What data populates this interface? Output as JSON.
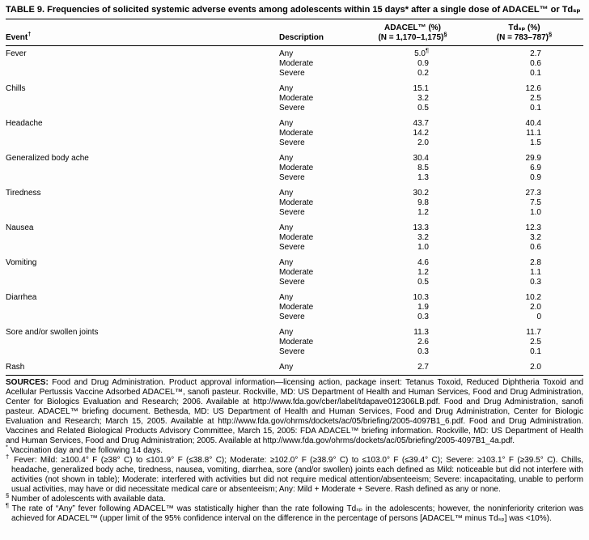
{
  "title": "TABLE 9. Frequencies of solicited systemic adverse events among adolescents within 15 days* after a single dose of ADACEL™ or Tdₛₚ",
  "table": {
    "headers": {
      "event": "Event†",
      "description": "Description",
      "adacel_line1": "ADACEL™ (%)",
      "adacel_line2": "(N = 1,170–1,175)§",
      "tdsp_line1": "Tdₛₚ (%)",
      "tdsp_line2": "(N = 783–787)§"
    },
    "rows": [
      {
        "event": "Fever",
        "entries": [
          [
            "Any",
            "5.0¶",
            "2.7"
          ],
          [
            "Moderate",
            "0.9",
            "0.6"
          ],
          [
            "Severe",
            "0.2",
            "0.1"
          ]
        ]
      },
      {
        "event": "Chills",
        "entries": [
          [
            "Any",
            "15.1",
            "12.6"
          ],
          [
            "Moderate",
            "3.2",
            "2.5"
          ],
          [
            "Severe",
            "0.5",
            "0.1"
          ]
        ]
      },
      {
        "event": "Headache",
        "entries": [
          [
            "Any",
            "43.7",
            "40.4"
          ],
          [
            "Moderate",
            "14.2",
            "11.1"
          ],
          [
            "Severe",
            "2.0",
            "1.5"
          ]
        ]
      },
      {
        "event": "Generalized body ache",
        "entries": [
          [
            "Any",
            "30.4",
            "29.9"
          ],
          [
            "Moderate",
            "8.5",
            "6.9"
          ],
          [
            "Severe",
            "1.3",
            "0.9"
          ]
        ]
      },
      {
        "event": "Tiredness",
        "entries": [
          [
            "Any",
            "30.2",
            "27.3"
          ],
          [
            "Moderate",
            "9.8",
            "7.5"
          ],
          [
            "Severe",
            "1.2",
            "1.0"
          ]
        ]
      },
      {
        "event": "Nausea",
        "entries": [
          [
            "Any",
            "13.3",
            "12.3"
          ],
          [
            "Moderate",
            "3.2",
            "3.2"
          ],
          [
            "Severe",
            "1.0",
            "0.6"
          ]
        ]
      },
      {
        "event": "Vomiting",
        "entries": [
          [
            "Any",
            "4.6",
            "2.8"
          ],
          [
            "Moderate",
            "1.2",
            "1.1"
          ],
          [
            "Severe",
            "0.5",
            "0.3"
          ]
        ]
      },
      {
        "event": "Diarrhea",
        "entries": [
          [
            "Any",
            "10.3",
            "10.2"
          ],
          [
            "Moderate",
            "1.9",
            "2.0"
          ],
          [
            "Severe",
            "0.3",
            "0"
          ]
        ]
      },
      {
        "event": "Sore and/or swollen joints",
        "entries": [
          [
            "Any",
            "11.3",
            "11.7"
          ],
          [
            "Moderate",
            "2.6",
            "2.5"
          ],
          [
            "Severe",
            "0.3",
            "0.1"
          ]
        ]
      },
      {
        "event": "Rash",
        "entries": [
          [
            "Any",
            "2.7",
            "2.0"
          ]
        ]
      }
    ]
  },
  "footnotes": {
    "sources_label": "SOURCES:",
    "sources_text": "Food and Drug Administration. Product approval information—licensing action, package insert: Tetanus Toxoid, Reduced Diphtheria Toxoid and Acellular Pertussis Vaccine Adsorbed ADACEL™, sanofi pasteur. Rockville, MD: US Department of Health and Human Services, Food and Drug Administration, Center for Biologics Evaluation and Research; 2006. Available at http://www.fda.gov/cber/label/tdapave012306LB.pdf. Food and Drug Administration, sanofi pasteur. ADACEL™ briefing document. Bethesda, MD: US Department of Health and Human Services, Food and Drug Administration, Center for Biologic Evaluation and Research; March 15, 2005. Available at http://www.fda.gov/ohrms/dockets/ac/05/briefing/2005-4097B1_6.pdf. Food and Drug Administration. Vaccines and Related Biological Products Advisory Committee, March 15, 2005: FDA ADACEL™ briefing information. Rockville, MD: US Department of Health and Human Services, Food and Drug Administration; 2005. Available at http://www.fda.gov/ohrms/dockets/ac/05/briefing/2005-4097B1_4a.pdf.",
    "notes": [
      {
        "marker": "*",
        "text": "Vaccination day and the following 14 days."
      },
      {
        "marker": "†",
        "text": "Fever: Mild: ≥100.4° F (≥38° C) to ≤101.9° F (≤38.8° C); Moderate: ≥102.0° F (≥38.9° C) to ≤103.0° F (≤39.4° C); Severe: ≥103.1° F (≥39.5° C). Chills, headache, generalized body ache, tiredness, nausea, vomiting, diarrhea, sore (and/or swollen) joints each defined as Mild: noticeable but did not interfere with activities (not shown in table); Moderate: interfered with activities but did not require medical attention/absenteeism; Severe: incapacitating, unable to perform usual activities, may have or did necessitate medical care or absenteeism; Any: Mild + Moderate + Severe. Rash defined as any or none."
      },
      {
        "marker": "§",
        "text": "Number of adolescents with available data."
      },
      {
        "marker": "¶",
        "text": "The rate of “Any” fever following ADACEL™ was statistically higher than the rate following Tdₛₚ in the adolescents; however, the noninferiority criterion was achieved for ADACEL™ (upper limit of the 95% confidence interval on the difference in the percentage of persons [ADACEL™ minus Tdₛₚ] was <10%)."
      }
    ]
  }
}
